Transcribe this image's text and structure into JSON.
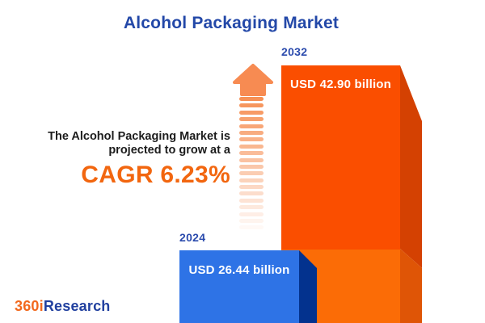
{
  "title": "Alcohol Packaging Market",
  "intro": {
    "line1": "The Alcohol Packaging Market is",
    "line2": "projected to grow at a",
    "cagr_text": "CAGR 6.23%"
  },
  "chart_data": {
    "type": "bar",
    "title": "Alcohol Packaging Market",
    "categories": [
      "2024",
      "2032"
    ],
    "values": [
      26.44,
      42.9
    ],
    "unit": "USD billion",
    "value_labels": [
      "USD 26.44 billion",
      "USD 42.90 billion"
    ],
    "cagr_percent": 6.23,
    "orientation": "vertical-3d",
    "legend": "none",
    "colors": {
      "bar_2024_front": "#2e73e6",
      "bar_2024_side": "#03328e",
      "bar_2032_front_top": "#fa4e00",
      "bar_2032_front_bottom": "#fb6c06",
      "bar_2032_side_top": "#d44102",
      "bar_2032_side_bottom": "#df5506",
      "accent_blue": "#2348a8",
      "accent_orange": "#f2660f"
    }
  },
  "bars": {
    "b2024": {
      "year": "2024",
      "label": "USD 26.44 billion"
    },
    "b2032": {
      "year": "2032",
      "label": "USD 42.90 billion"
    }
  },
  "arrow": {
    "dash_count": 20,
    "dash_color": "#f69055",
    "head_color": "#f78b52"
  },
  "logo": {
    "part1": "360i",
    "part2": "Research"
  }
}
